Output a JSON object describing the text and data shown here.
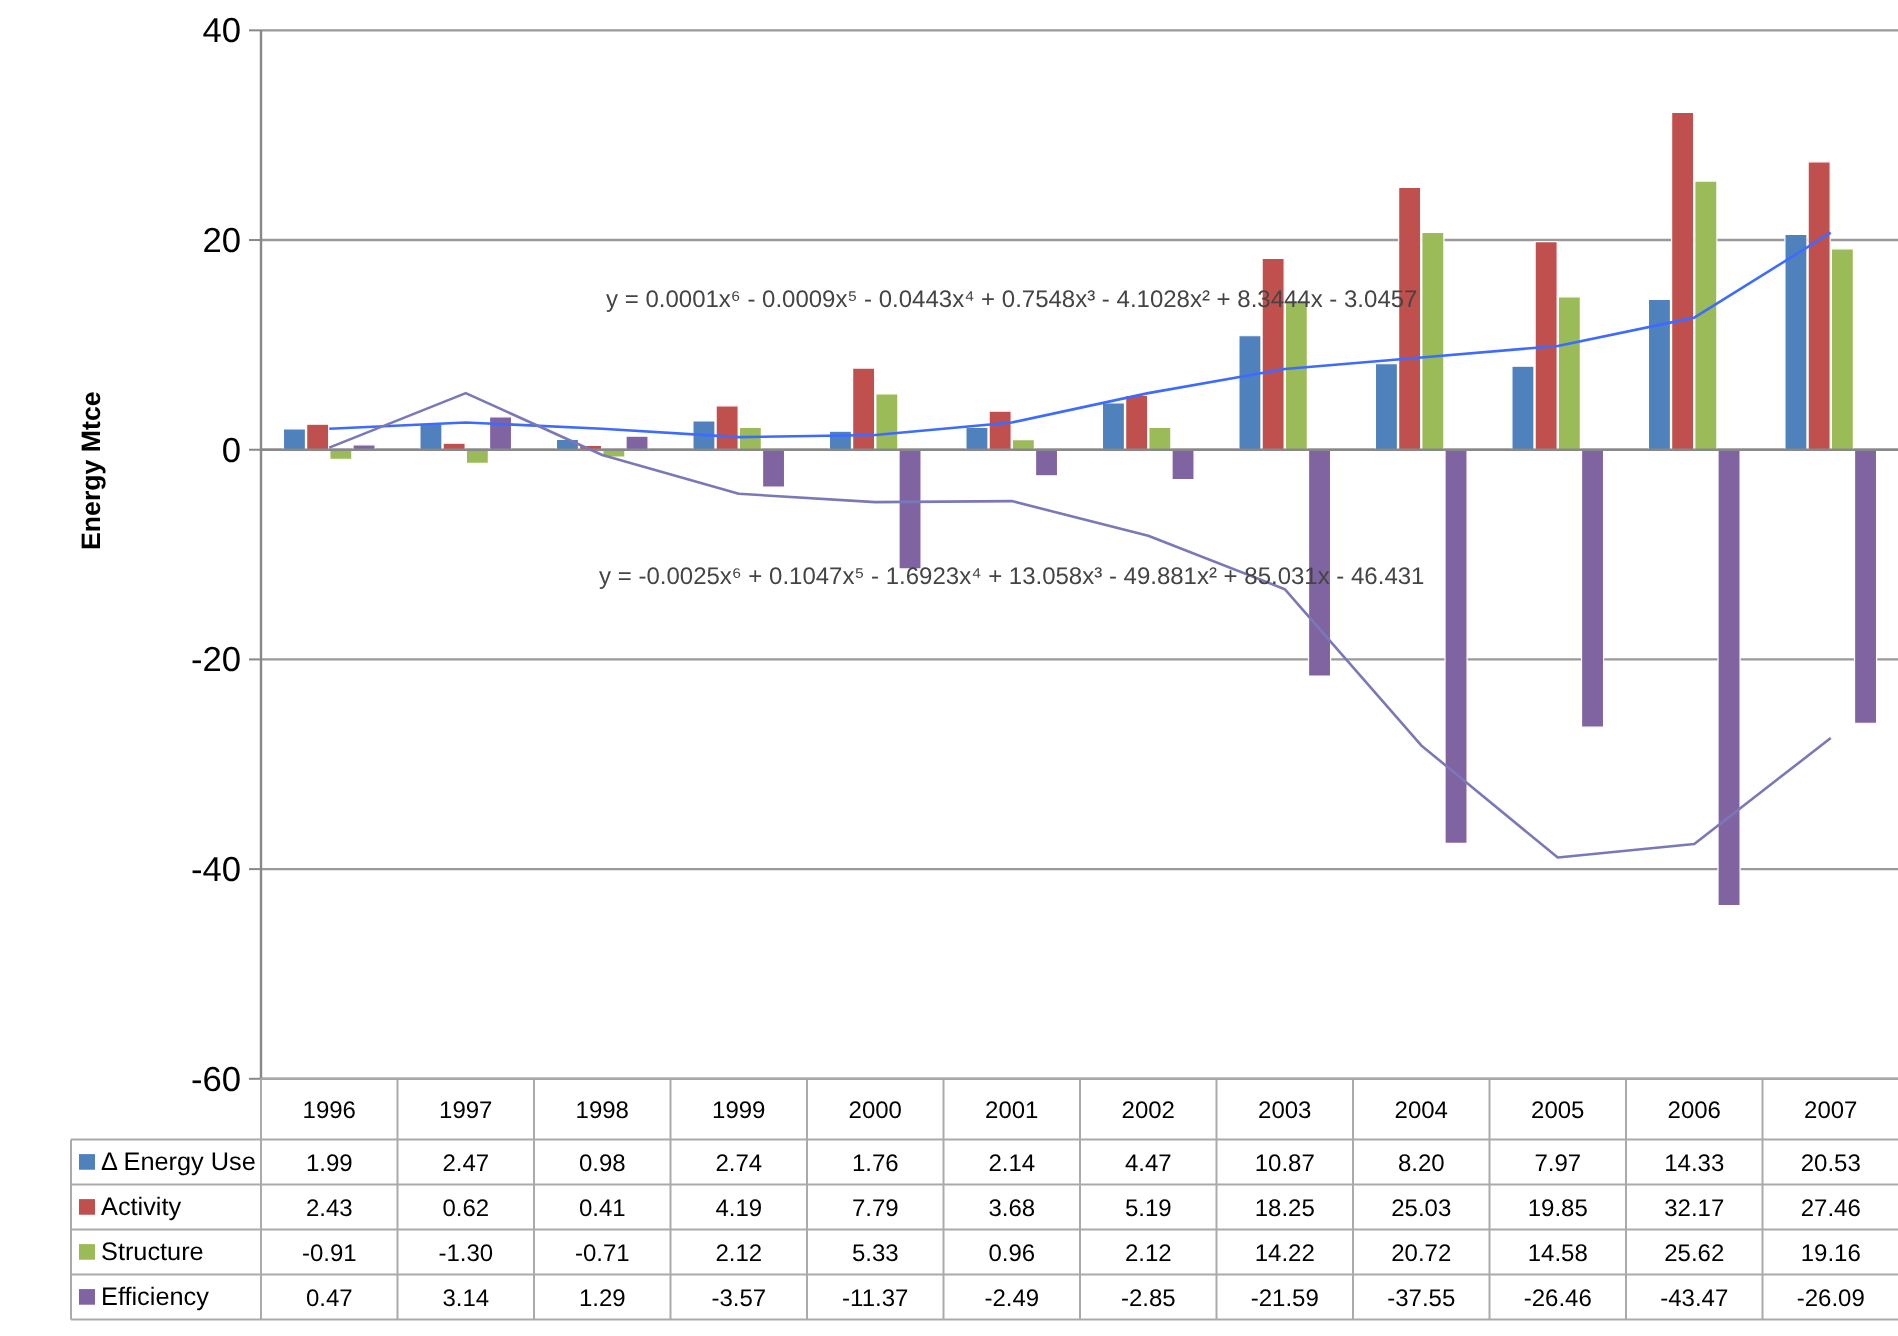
{
  "chart_data": {
    "type": "bar",
    "ylabel": "Energy Mtce",
    "categories": [
      "1996",
      "1997",
      "1998",
      "1999",
      "2000",
      "2001",
      "2002",
      "2003",
      "2004",
      "2005",
      "2006",
      "2007"
    ],
    "series": [
      {
        "name": "Δ Energy Use",
        "color": "#4f81bd",
        "values": [
          1.99,
          2.47,
          0.98,
          2.74,
          1.76,
          2.14,
          4.47,
          10.87,
          8.2,
          7.97,
          14.33,
          20.53
        ],
        "value_labels": [
          "1.99",
          "2.47",
          "0.98",
          "2.74",
          "1.76",
          "2.14",
          "4.47",
          "10.87",
          "8.20",
          "7.97",
          "14.33",
          "20.53"
        ]
      },
      {
        "name": "Activity",
        "color": "#c0504d",
        "values": [
          2.43,
          0.62,
          0.41,
          4.19,
          7.79,
          3.68,
          5.19,
          18.25,
          25.03,
          19.85,
          32.17,
          27.46
        ],
        "value_labels": [
          "2.43",
          "0.62",
          "0.41",
          "4.19",
          "7.79",
          "3.68",
          "5.19",
          "18.25",
          "25.03",
          "19.85",
          "32.17",
          "27.46"
        ]
      },
      {
        "name": "Structure",
        "color": "#9bbb59",
        "values": [
          -0.91,
          -1.3,
          -0.71,
          2.12,
          5.33,
          0.96,
          2.12,
          14.22,
          20.72,
          14.58,
          25.62,
          19.16
        ],
        "value_labels": [
          "-0.91",
          "-1.30",
          "-0.71",
          "2.12",
          "5.33",
          "0.96",
          "2.12",
          "14.22",
          "20.72",
          "14.58",
          "25.62",
          "19.16"
        ]
      },
      {
        "name": "Efficiency",
        "color": "#8064a2",
        "values": [
          0.47,
          3.14,
          1.29,
          -3.57,
          -11.37,
          -2.49,
          -2.85,
          -21.59,
          -37.55,
          -26.46,
          -43.47,
          -26.09
        ],
        "value_labels": [
          "0.47",
          "3.14",
          "1.29",
          "-3.57",
          "-11.37",
          "-2.49",
          "-2.85",
          "-21.59",
          "-37.55",
          "-26.46",
          "-43.47",
          "-26.09"
        ]
      },
      {
        "type": "line",
        "color": "#3d6bff",
        "values": [
          2.0,
          2.6,
          2.0,
          1.2,
          1.4,
          2.6,
          5.4,
          7.7,
          8.8,
          9.9,
          12.6,
          20.7
        ]
      },
      {
        "type": "line",
        "color": "#7b78b8",
        "values": [
          0.2,
          5.4,
          -0.5,
          -4.2,
          -5.0,
          -4.9,
          -8.2,
          -13.3,
          -28.2,
          -38.9,
          -37.6,
          -27.5
        ]
      }
    ],
    "annotations": [
      "y = 0.0001x⁶ - 0.0009x⁵ - 0.0443x⁴ + 0.7548x³ - 4.1028x² + 8.3444x - 3.0457",
      "y = -0.0025x⁶ + 0.1047x⁵ - 1.6923x⁴ + 13.058x³ - 49.881x² + 85.031x - 46.431"
    ],
    "ylim": [
      -60,
      40
    ],
    "yticks": [
      -60,
      -40,
      -20,
      0,
      20,
      40
    ],
    "grid": "y",
    "legend": "bottom"
  }
}
